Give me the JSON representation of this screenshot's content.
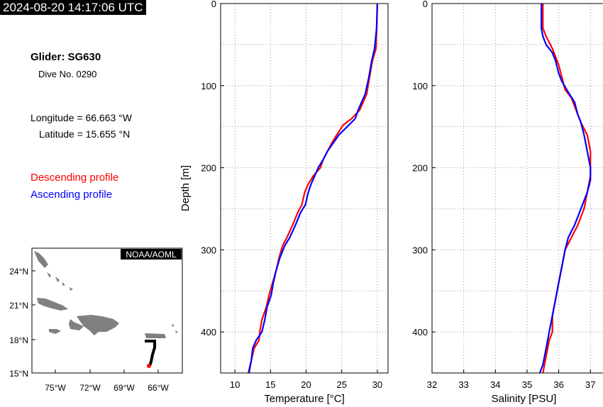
{
  "header": {
    "timestamp": "2024-08-20 14:17:06 UTC"
  },
  "info": {
    "glider": "Glider: SG630",
    "dive": "Dive No. 0290",
    "longitude": "Longitude = 66.663 °W",
    "latitude": "Latitude = 15.655 °N"
  },
  "legend": {
    "descending": {
      "label": "Descending profile",
      "color": "#ff0000"
    },
    "ascending": {
      "label": "Ascending profile",
      "color": "#0000ff"
    }
  },
  "map": {
    "badge": "NOAA/AOML",
    "lat_ticks": [
      "24°N",
      "21°N",
      "18°N",
      "15°N"
    ],
    "lon_ticks": [
      "75°W",
      "72°W",
      "69°W",
      "66°W"
    ],
    "land_color": "#808080",
    "track_color": "#000000",
    "position_color": "#ff0000"
  },
  "chart_data": [
    {
      "type": "line",
      "xlabel": "Temperature [°C]",
      "ylabel": "Depth [m]",
      "xlim": [
        8,
        31.5
      ],
      "ylim": [
        450,
        0
      ],
      "x_ticks": [
        "10",
        "15",
        "20",
        "25",
        "30"
      ],
      "y_ticks": [
        "0",
        "100",
        "200",
        "300",
        "400"
      ],
      "grid": true,
      "series": [
        {
          "name": "Descending profile",
          "color": "#ff0000",
          "points": [
            [
              30.0,
              0
            ],
            [
              29.9,
              30
            ],
            [
              29.8,
              55
            ],
            [
              29.3,
              70
            ],
            [
              28.9,
              90
            ],
            [
              28.5,
              110
            ],
            [
              28.0,
              120
            ],
            [
              27.5,
              130
            ],
            [
              26.4,
              140
            ],
            [
              25.2,
              148
            ],
            [
              24.3,
              160
            ],
            [
              23.6,
              170
            ],
            [
              23.0,
              180
            ],
            [
              22.4,
              190
            ],
            [
              22.0,
              200
            ],
            [
              21.0,
              210
            ],
            [
              20.3,
              220
            ],
            [
              19.8,
              230
            ],
            [
              19.4,
              245
            ],
            [
              18.8,
              255
            ],
            [
              18.1,
              270
            ],
            [
              17.3,
              285
            ],
            [
              16.7,
              295
            ],
            [
              16.2,
              310
            ],
            [
              15.8,
              325
            ],
            [
              15.3,
              340
            ],
            [
              14.8,
              355
            ],
            [
              14.4,
              370
            ],
            [
              13.8,
              385
            ],
            [
              13.5,
              400
            ],
            [
              13.4,
              410
            ],
            [
              12.7,
              420
            ],
            [
              12.3,
              435
            ],
            [
              12.0,
              450
            ]
          ]
        },
        {
          "name": "Ascending profile",
          "color": "#0000ff",
          "points": [
            [
              30.0,
              0
            ],
            [
              29.9,
              30
            ],
            [
              29.6,
              55
            ],
            [
              29.2,
              70
            ],
            [
              28.8,
              90
            ],
            [
              28.3,
              110
            ],
            [
              27.8,
              120
            ],
            [
              27.3,
              130
            ],
            [
              26.9,
              140
            ],
            [
              26.0,
              148
            ],
            [
              24.6,
              160
            ],
            [
              23.8,
              170
            ],
            [
              23.0,
              180
            ],
            [
              22.4,
              190
            ],
            [
              21.7,
              200
            ],
            [
              21.2,
              210
            ],
            [
              20.7,
              220
            ],
            [
              20.3,
              230
            ],
            [
              19.9,
              245
            ],
            [
              19.2,
              255
            ],
            [
              18.5,
              270
            ],
            [
              17.7,
              285
            ],
            [
              17.0,
              295
            ],
            [
              16.3,
              310
            ],
            [
              15.8,
              325
            ],
            [
              15.4,
              340
            ],
            [
              15.1,
              355
            ],
            [
              14.5,
              370
            ],
            [
              14.2,
              385
            ],
            [
              13.8,
              400
            ],
            [
              13.0,
              410
            ],
            [
              12.5,
              420
            ],
            [
              12.3,
              435
            ],
            [
              11.9,
              450
            ]
          ]
        }
      ]
    },
    {
      "type": "line",
      "xlabel": "Salinity [PSU]",
      "ylabel": "",
      "xlim": [
        32,
        37.8
      ],
      "ylim": [
        450,
        0
      ],
      "x_ticks": [
        "32",
        "33",
        "34",
        "35",
        "36",
        "37"
      ],
      "y_ticks": [
        "0",
        "100",
        "200",
        "300",
        "400"
      ],
      "grid": true,
      "series": [
        {
          "name": "Descending profile",
          "color": "#ff0000",
          "points": [
            [
              35.5,
              0
            ],
            [
              35.5,
              30
            ],
            [
              35.6,
              40
            ],
            [
              35.8,
              55
            ],
            [
              35.9,
              65
            ],
            [
              36.0,
              75
            ],
            [
              36.1,
              90
            ],
            [
              36.2,
              105
            ],
            [
              36.4,
              115
            ],
            [
              36.5,
              125
            ],
            [
              36.6,
              135
            ],
            [
              36.7,
              145
            ],
            [
              36.9,
              160
            ],
            [
              37.0,
              180
            ],
            [
              37.0,
              200
            ],
            [
              37.0,
              210
            ],
            [
              36.9,
              230
            ],
            [
              36.8,
              250
            ],
            [
              36.6,
              270
            ],
            [
              36.4,
              285
            ],
            [
              36.2,
              300
            ],
            [
              36.1,
              320
            ],
            [
              36.0,
              340
            ],
            [
              35.9,
              360
            ],
            [
              35.8,
              380
            ],
            [
              35.8,
              400
            ],
            [
              35.7,
              410
            ],
            [
              35.6,
              430
            ],
            [
              35.5,
              450
            ]
          ]
        },
        {
          "name": "Ascending profile",
          "color": "#0000ff",
          "points": [
            [
              35.45,
              0
            ],
            [
              35.45,
              30
            ],
            [
              35.5,
              40
            ],
            [
              35.6,
              50
            ],
            [
              35.8,
              60
            ],
            [
              35.9,
              70
            ],
            [
              36.0,
              85
            ],
            [
              36.1,
              95
            ],
            [
              36.3,
              108
            ],
            [
              36.5,
              120
            ],
            [
              36.6,
              135
            ],
            [
              36.7,
              145
            ],
            [
              36.8,
              160
            ],
            [
              36.9,
              180
            ],
            [
              37.0,
              200
            ],
            [
              37.0,
              215
            ],
            [
              36.9,
              230
            ],
            [
              36.7,
              250
            ],
            [
              36.5,
              270
            ],
            [
              36.3,
              285
            ],
            [
              36.2,
              300
            ],
            [
              36.1,
              320
            ],
            [
              36.0,
              340
            ],
            [
              35.9,
              360
            ],
            [
              35.8,
              380
            ],
            [
              35.7,
              400
            ],
            [
              35.6,
              420
            ],
            [
              35.5,
              440
            ],
            [
              35.4,
              450
            ]
          ]
        }
      ]
    }
  ]
}
